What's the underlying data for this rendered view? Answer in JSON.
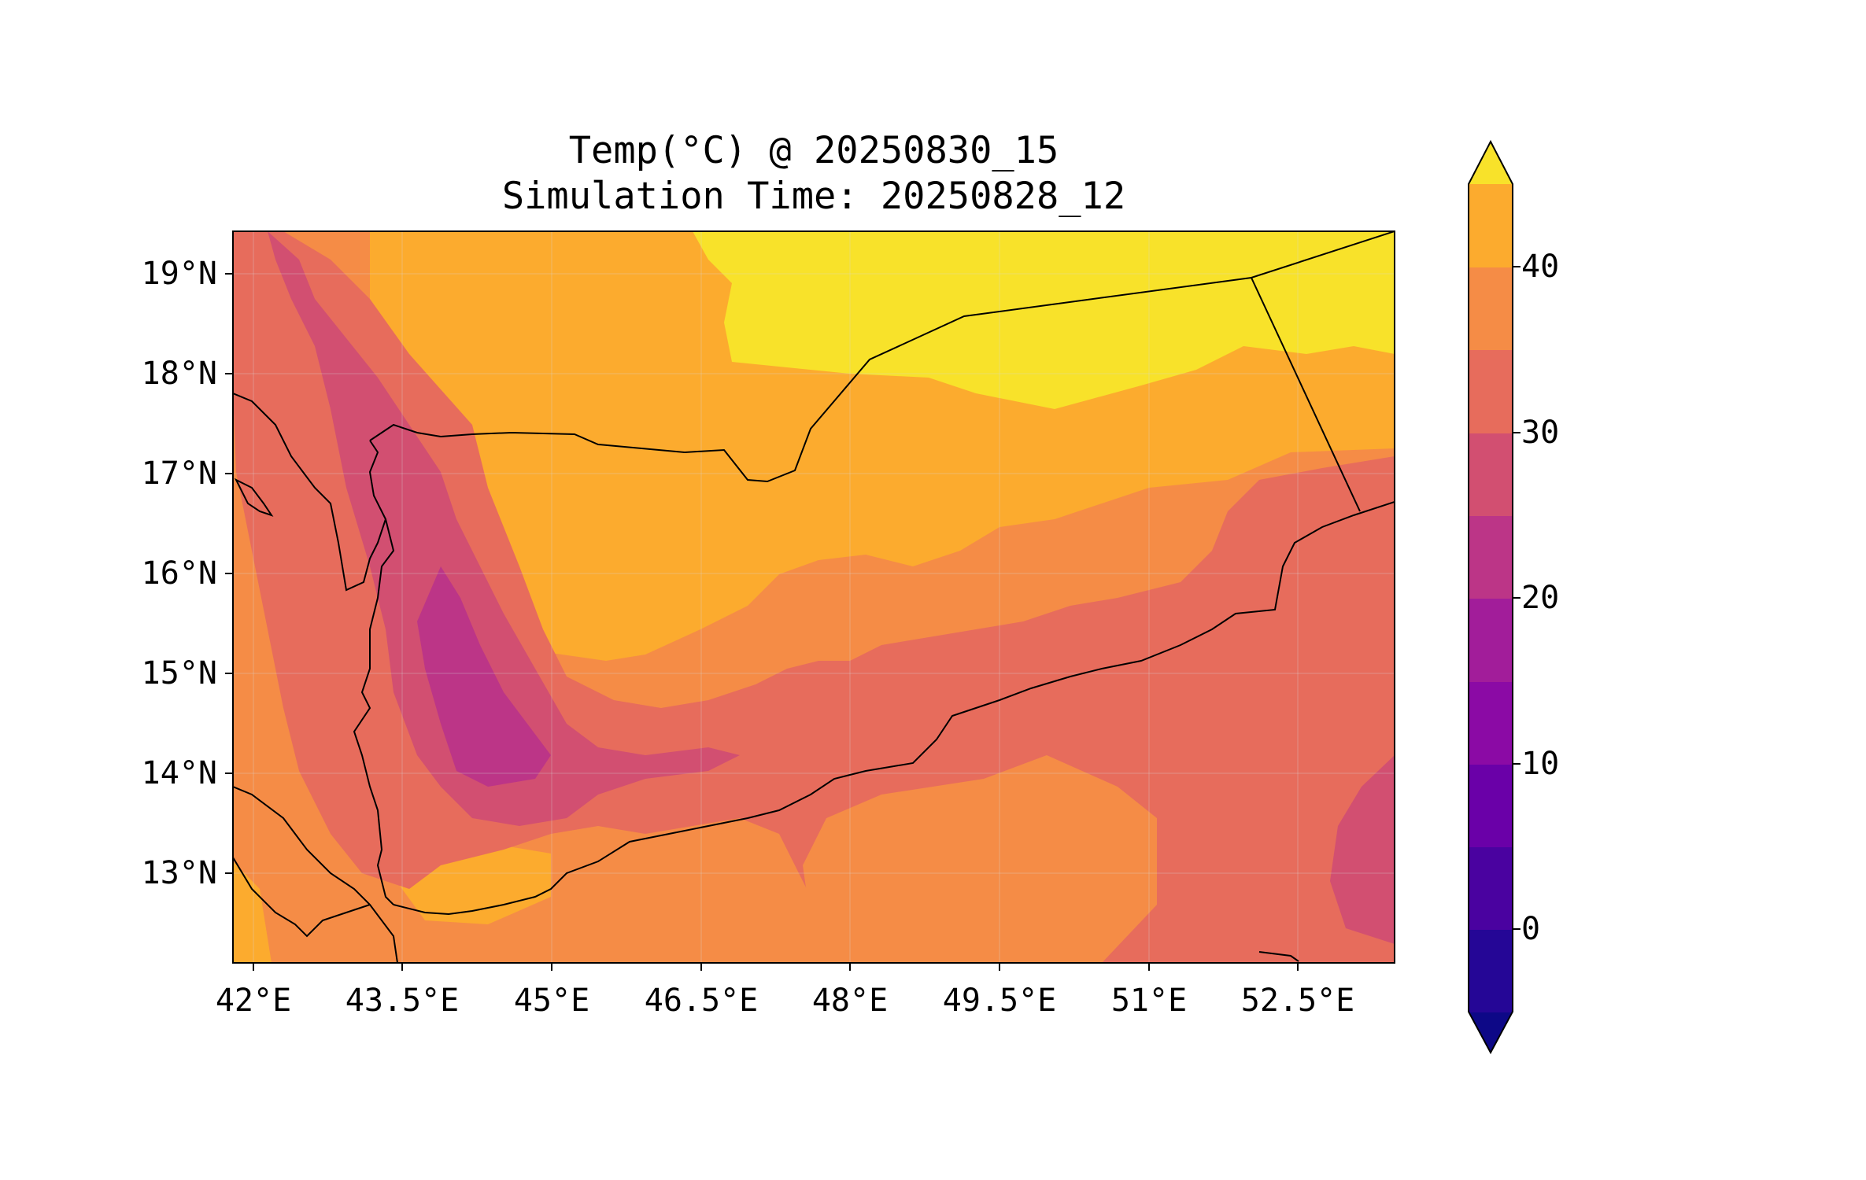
{
  "title": {
    "line1": "Temp(°C) @ 20250830_15",
    "line2": "Simulation Time: 20250828_12"
  },
  "map": {
    "lat_labels": [
      "19°N",
      "18°N",
      "17°N",
      "16°N",
      "15°N",
      "14°N",
      "13°N"
    ],
    "lon_labels": [
      "42°E",
      "43.5°E",
      "45°E",
      "46.5°E",
      "48°E",
      "49.5°E",
      "51°E",
      "52.5°E"
    ],
    "extent": {
      "lon_min": 41.9,
      "lon_max": 53.1,
      "lat_min": 12.1,
      "lat_max": 19.5
    }
  },
  "colorbar": {
    "tick_labels": [
      "0",
      "10",
      "20",
      "30",
      "40"
    ],
    "levels": [
      -5,
      0,
      5,
      10,
      15,
      20,
      25,
      30,
      35,
      40,
      45
    ],
    "extend": "both",
    "colormap": "plasma",
    "colors": [
      "#0d0887",
      "#250696",
      "#4a02a0",
      "#6a00a8",
      "#8b0aa5",
      "#a21d9a",
      "#bc3587",
      "#d24f71",
      "#e76c5c",
      "#f58c46",
      "#fcab2e",
      "#f8e22a",
      "#f0f921"
    ]
  },
  "legend_label": "Temp(°C)"
}
